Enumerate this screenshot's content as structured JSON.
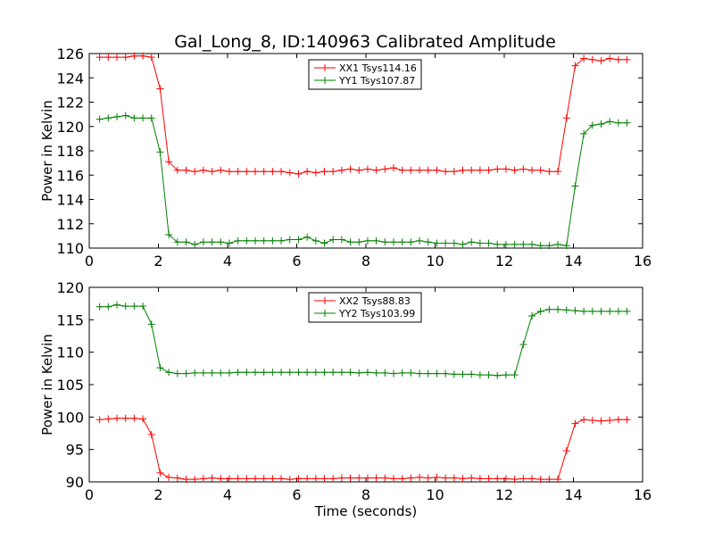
{
  "title": "Gal_Long_8, ID:140963 Calibrated Amplitude",
  "chart_data": [
    {
      "type": "line",
      "ylabel": "Power in Kelvin",
      "xlabel": "",
      "xlim": [
        0,
        16
      ],
      "ylim": [
        110,
        126
      ],
      "xticks": [
        0,
        2,
        4,
        6,
        8,
        10,
        12,
        14,
        16
      ],
      "yticks": [
        110,
        112,
        114,
        116,
        118,
        120,
        122,
        124,
        126
      ],
      "grid": false,
      "legend_position": "top-center",
      "x": [
        0.3,
        0.55,
        0.8,
        1.05,
        1.3,
        1.55,
        1.8,
        2.05,
        2.3,
        2.55,
        2.8,
        3.05,
        3.3,
        3.55,
        3.8,
        4.05,
        4.3,
        4.55,
        4.8,
        5.05,
        5.3,
        5.55,
        5.8,
        6.05,
        6.3,
        6.55,
        6.8,
        7.05,
        7.3,
        7.55,
        7.8,
        8.05,
        8.3,
        8.55,
        8.8,
        9.05,
        9.3,
        9.55,
        9.8,
        10.05,
        10.3,
        10.55,
        10.8,
        11.05,
        11.3,
        11.55,
        11.8,
        12.05,
        12.3,
        12.55,
        12.8,
        13.05,
        13.3,
        13.55,
        13.8,
        14.05,
        14.3,
        14.55,
        14.8,
        15.05,
        15.3,
        15.55
      ],
      "series": [
        {
          "name": "XX1 Tsys114.16",
          "color": "#ff0000",
          "values": [
            125.7,
            125.7,
            125.7,
            125.7,
            125.8,
            125.8,
            125.7,
            123.1,
            117.1,
            116.4,
            116.4,
            116.3,
            116.4,
            116.3,
            116.4,
            116.3,
            116.3,
            116.3,
            116.3,
            116.3,
            116.3,
            116.3,
            116.2,
            116.1,
            116.3,
            116.2,
            116.3,
            116.3,
            116.4,
            116.5,
            116.4,
            116.5,
            116.4,
            116.5,
            116.6,
            116.4,
            116.4,
            116.4,
            116.4,
            116.4,
            116.3,
            116.3,
            116.4,
            116.4,
            116.4,
            116.4,
            116.5,
            116.5,
            116.4,
            116.5,
            116.4,
            116.4,
            116.3,
            116.3,
            120.7,
            125.0,
            125.6,
            125.5,
            125.4,
            125.6,
            125.5,
            125.5
          ]
        },
        {
          "name": "YY1 Tsys107.87",
          "color": "#008000",
          "values": [
            120.6,
            120.7,
            120.8,
            120.9,
            120.7,
            120.7,
            120.7,
            117.9,
            111.1,
            110.5,
            110.5,
            110.3,
            110.5,
            110.5,
            110.5,
            110.4,
            110.6,
            110.6,
            110.6,
            110.6,
            110.6,
            110.6,
            110.7,
            110.7,
            110.9,
            110.6,
            110.4,
            110.7,
            110.7,
            110.5,
            110.5,
            110.6,
            110.6,
            110.5,
            110.5,
            110.5,
            110.5,
            110.6,
            110.5,
            110.4,
            110.4,
            110.4,
            110.3,
            110.5,
            110.4,
            110.4,
            110.3,
            110.3,
            110.3,
            110.3,
            110.3,
            110.2,
            110.2,
            110.3,
            110.2,
            115.1,
            119.4,
            120.1,
            120.2,
            120.4,
            120.3,
            120.3
          ]
        }
      ]
    },
    {
      "type": "line",
      "ylabel": "Power in Kelvin",
      "xlabel": "Time (seconds)",
      "xlim": [
        0,
        16
      ],
      "ylim": [
        90,
        120
      ],
      "xticks": [
        0,
        2,
        4,
        6,
        8,
        10,
        12,
        14,
        16
      ],
      "yticks": [
        90,
        95,
        100,
        105,
        110,
        115,
        120
      ],
      "grid": false,
      "legend_position": "top-center",
      "x": [
        0.3,
        0.55,
        0.8,
        1.05,
        1.3,
        1.55,
        1.8,
        2.05,
        2.3,
        2.55,
        2.8,
        3.05,
        3.3,
        3.55,
        3.8,
        4.05,
        4.3,
        4.55,
        4.8,
        5.05,
        5.3,
        5.55,
        5.8,
        6.05,
        6.3,
        6.55,
        6.8,
        7.05,
        7.3,
        7.55,
        7.8,
        8.05,
        8.3,
        8.55,
        8.8,
        9.05,
        9.3,
        9.55,
        9.8,
        10.05,
        10.3,
        10.55,
        10.8,
        11.05,
        11.3,
        11.55,
        11.8,
        12.05,
        12.3,
        12.55,
        12.8,
        13.05,
        13.3,
        13.55,
        13.8,
        14.05,
        14.3,
        14.55,
        14.8,
        15.05,
        15.3,
        15.55
      ],
      "series": [
        {
          "name": "XX2 Tsys88.83",
          "color": "#ff0000",
          "values": [
            99.6,
            99.7,
            99.8,
            99.8,
            99.8,
            99.7,
            97.3,
            91.4,
            90.7,
            90.6,
            90.4,
            90.4,
            90.5,
            90.6,
            90.5,
            90.5,
            90.5,
            90.5,
            90.5,
            90.5,
            90.5,
            90.5,
            90.4,
            90.5,
            90.5,
            90.5,
            90.5,
            90.5,
            90.6,
            90.6,
            90.6,
            90.6,
            90.6,
            90.6,
            90.5,
            90.5,
            90.6,
            90.7,
            90.6,
            90.7,
            90.6,
            90.6,
            90.5,
            90.6,
            90.5,
            90.5,
            90.5,
            90.5,
            90.4,
            90.5,
            90.5,
            90.4,
            90.4,
            90.4,
            94.8,
            99.0,
            99.6,
            99.5,
            99.4,
            99.5,
            99.6,
            99.6
          ]
        },
        {
          "name": "YY2 Tsys103.99",
          "color": "#008000",
          "values": [
            117.0,
            117.0,
            117.3,
            117.1,
            117.1,
            117.1,
            114.3,
            107.6,
            106.9,
            106.7,
            106.7,
            106.8,
            106.8,
            106.8,
            106.8,
            106.8,
            106.9,
            106.9,
            106.9,
            106.9,
            106.9,
            106.9,
            106.9,
            106.9,
            106.9,
            106.9,
            106.9,
            106.9,
            106.9,
            106.9,
            106.8,
            106.9,
            106.8,
            106.8,
            106.7,
            106.8,
            106.8,
            106.7,
            106.7,
            106.7,
            106.7,
            106.6,
            106.6,
            106.6,
            106.5,
            106.5,
            106.4,
            106.5,
            106.5,
            111.2,
            115.6,
            116.3,
            116.6,
            116.6,
            116.5,
            116.4,
            116.3,
            116.3,
            116.3,
            116.3,
            116.3,
            116.3
          ]
        }
      ]
    }
  ]
}
